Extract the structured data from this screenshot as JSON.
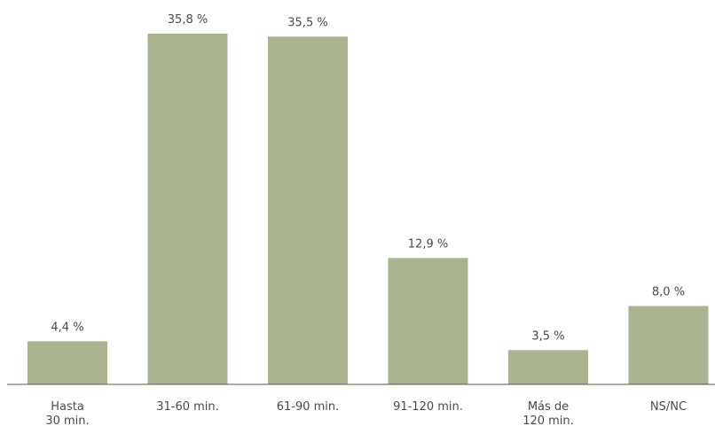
{
  "chart_data": {
    "type": "bar",
    "title": "",
    "xlabel": "",
    "ylabel": "",
    "ylim": [
      0,
      35.8
    ],
    "grid": false,
    "categories": [
      [
        "Hasta",
        "30 min."
      ],
      [
        "31-60 min."
      ],
      [
        "61-90 min."
      ],
      [
        "91-120 min."
      ],
      [
        "Más de",
        "120 min."
      ],
      [
        "NS/NC"
      ]
    ],
    "values": [
      4.4,
      35.8,
      35.5,
      12.9,
      3.5,
      8.0
    ],
    "value_labels": [
      "4,4 %",
      "35,8 %",
      "35,5 %",
      "12,9 %",
      "3,5 %",
      "8,0 %"
    ],
    "bar_color": "#a9b48f"
  }
}
